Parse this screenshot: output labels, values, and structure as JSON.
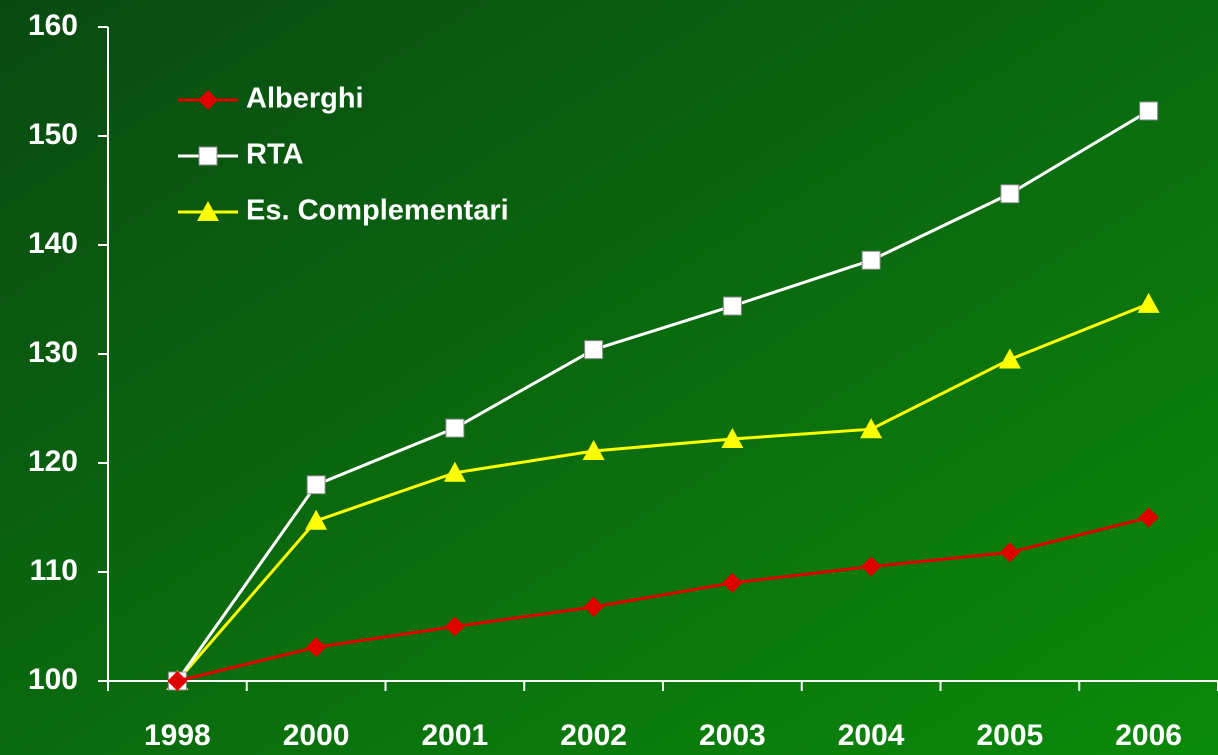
{
  "chart_data": {
    "type": "line",
    "categories": [
      "1998",
      "2000",
      "2001",
      "2002",
      "2003",
      "2004",
      "2005",
      "2006"
    ],
    "series": [
      {
        "name": "Alberghi",
        "color": "#e00000",
        "marker": "diamond",
        "values": [
          100,
          103.1,
          105,
          106.8,
          109,
          110.5,
          111.8,
          115
        ]
      },
      {
        "name": "RTA",
        "color": "#ffffff",
        "marker": "square",
        "values": [
          100,
          118,
          123.2,
          130.4,
          134.4,
          138.6,
          144.7,
          152.3
        ]
      },
      {
        "name": "Es. Complementari",
        "color": "#ffff00",
        "marker": "triangle",
        "values": [
          100,
          114.7,
          119.1,
          121.1,
          122.2,
          123.1,
          129.5,
          134.6
        ]
      }
    ],
    "ylim": [
      100,
      160
    ],
    "yticks": [
      100,
      110,
      120,
      130,
      140,
      150,
      160
    ],
    "legend": "upper left"
  }
}
